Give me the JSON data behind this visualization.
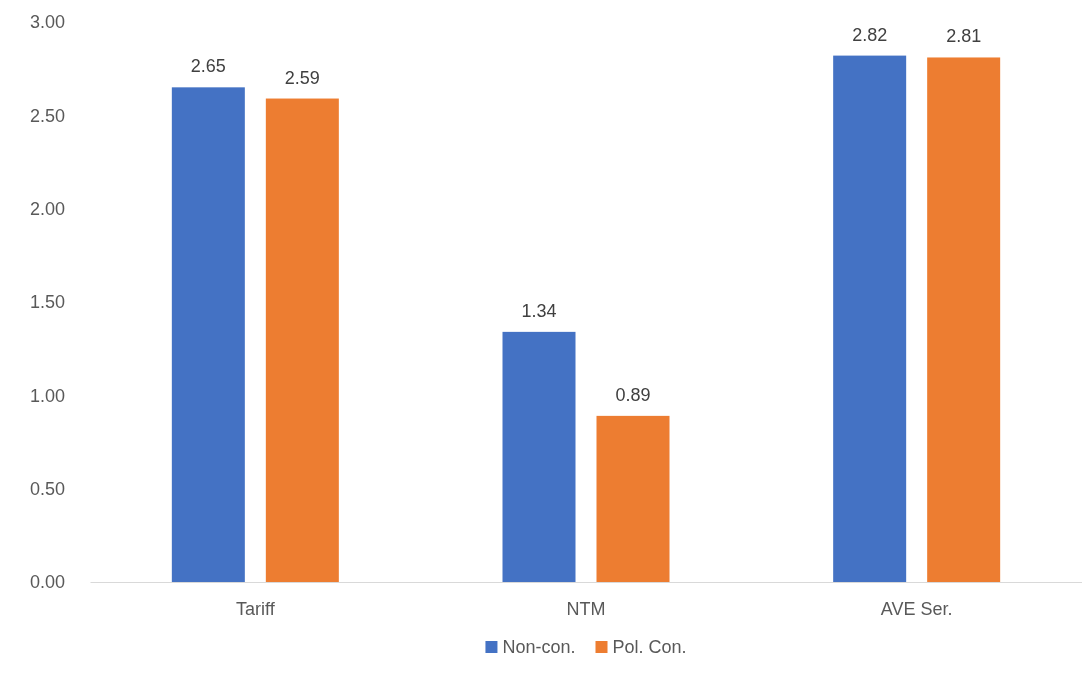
{
  "chart_data": {
    "type": "bar",
    "categories": [
      "Tariff",
      "NTM",
      "AVE Ser."
    ],
    "series": [
      {
        "name": "Non-con.",
        "color": "#4472c4",
        "values": [
          2.65,
          1.34,
          2.82
        ]
      },
      {
        "name": "Pol. Con.",
        "color": "#ed7d31",
        "values": [
          2.59,
          0.89,
          2.81
        ]
      }
    ],
    "ylim": [
      0,
      3
    ],
    "yticks": [
      {
        "value": 0,
        "label": "0.00"
      },
      {
        "value": 0.5,
        "label": "0.50"
      },
      {
        "value": 1,
        "label": "1.00"
      },
      {
        "value": 1.5,
        "label": "1.50"
      },
      {
        "value": 2,
        "label": "2.00"
      },
      {
        "value": 2.5,
        "label": "2.50"
      },
      {
        "value": 3,
        "label": "3.00"
      }
    ],
    "grid": false,
    "legend": "bottom",
    "data_labels": true
  }
}
